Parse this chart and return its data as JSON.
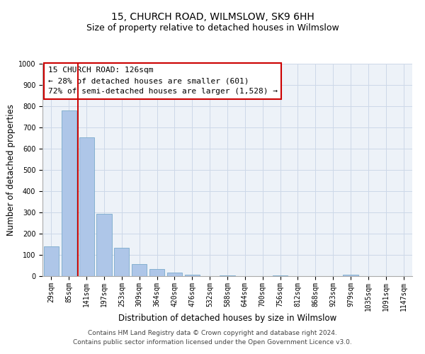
{
  "title": "15, CHURCH ROAD, WILMSLOW, SK9 6HH",
  "subtitle": "Size of property relative to detached houses in Wilmslow",
  "xlabel": "Distribution of detached houses by size in Wilmslow",
  "ylabel": "Number of detached properties",
  "bar_labels": [
    "29sqm",
    "85sqm",
    "141sqm",
    "197sqm",
    "253sqm",
    "309sqm",
    "364sqm",
    "420sqm",
    "476sqm",
    "532sqm",
    "588sqm",
    "644sqm",
    "700sqm",
    "756sqm",
    "812sqm",
    "868sqm",
    "923sqm",
    "979sqm",
    "1035sqm",
    "1091sqm",
    "1147sqm"
  ],
  "bar_values": [
    140,
    780,
    655,
    295,
    135,
    57,
    33,
    17,
    8,
    0,
    5,
    0,
    0,
    3,
    0,
    0,
    0,
    8,
    0,
    0,
    0
  ],
  "bar_color": "#aec6e8",
  "bar_edge_color": "#7aaacc",
  "ylim": [
    0,
    1000
  ],
  "yticks": [
    0,
    100,
    200,
    300,
    400,
    500,
    600,
    700,
    800,
    900,
    1000
  ],
  "property_line_color": "#cc0000",
  "annotation_title": "15 CHURCH ROAD: 126sqm",
  "annotation_line1": "← 28% of detached houses are smaller (601)",
  "annotation_line2": "72% of semi-detached houses are larger (1,528) →",
  "annotation_box_color": "#cc0000",
  "footer_line1": "Contains HM Land Registry data © Crown copyright and database right 2024.",
  "footer_line2": "Contains public sector information licensed under the Open Government Licence v3.0.",
  "title_fontsize": 10,
  "subtitle_fontsize": 9,
  "axis_label_fontsize": 8.5,
  "tick_fontsize": 7,
  "footer_fontsize": 6.5,
  "annotation_fontsize": 8,
  "grid_color": "#cdd8e8",
  "background_color": "#edf2f8"
}
